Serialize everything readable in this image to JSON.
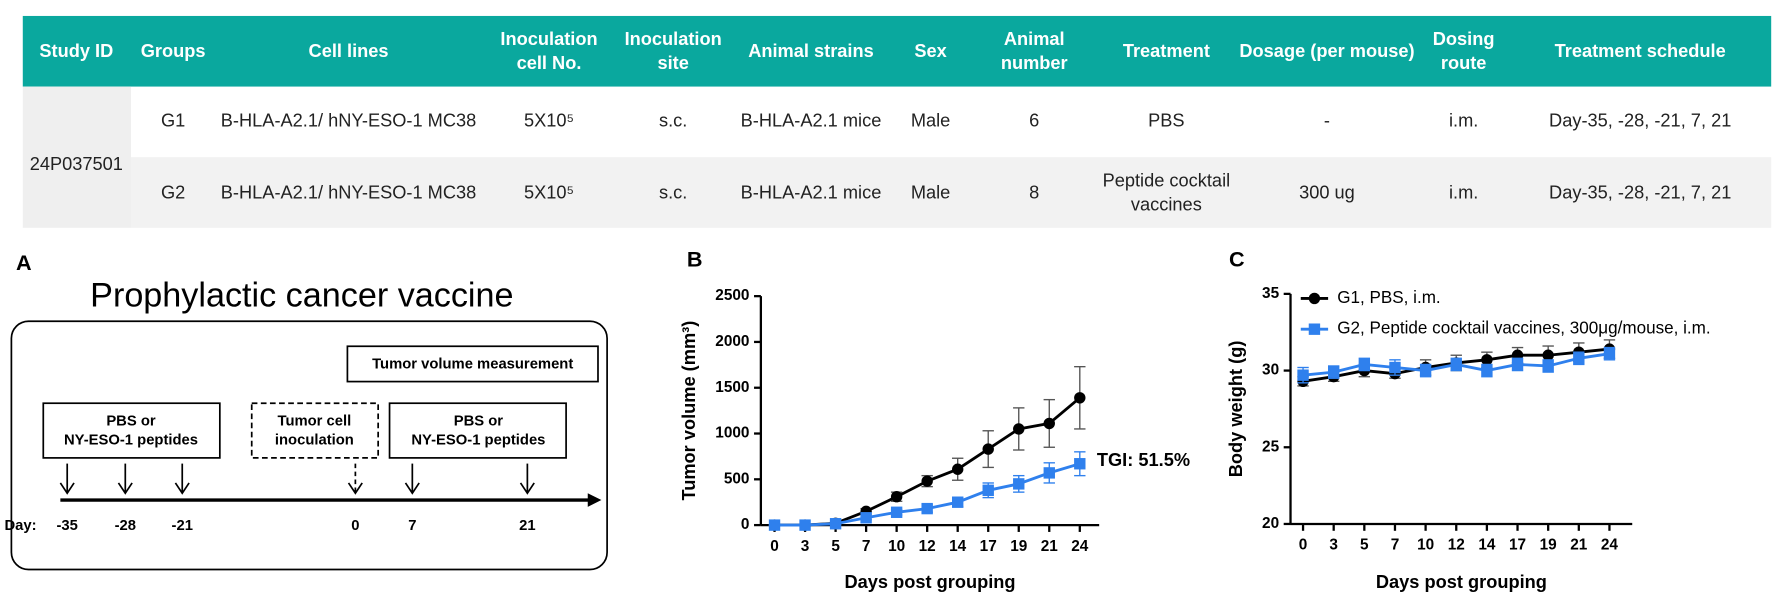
{
  "table": {
    "headers": [
      [
        "Study ID"
      ],
      [
        "Groups"
      ],
      [
        "Cell lines"
      ],
      [
        "Inoculation",
        "cell No."
      ],
      [
        "Inoculation",
        "site"
      ],
      [
        "Animal strains"
      ],
      [
        "Sex"
      ],
      [
        "Animal",
        "number"
      ],
      [
        "Treatment"
      ],
      [
        "Dosage (per mouse)"
      ],
      [
        "Dosing",
        "route"
      ],
      [
        "Treatment schedule"
      ]
    ],
    "study_id": "24P037501",
    "rows": [
      [
        [
          "G1"
        ],
        [
          "B-HLA-A2.1/ hNY-ESO-1 MC38"
        ],
        [
          "5X10⁵"
        ],
        [
          "s.c."
        ],
        [
          "B-HLA-A2.1 mice"
        ],
        [
          "Male"
        ],
        [
          6
        ],
        [
          "PBS"
        ],
        [
          "-"
        ],
        [
          "i.m."
        ],
        [
          "Day-35, -28, -21, 7, 21"
        ]
      ],
      [
        [
          "G2"
        ],
        [
          "B-HLA-A2.1/ hNY-ESO-1 MC38"
        ],
        [
          "5X10⁵"
        ],
        [
          "s.c."
        ],
        [
          "B-HLA-A2.1 mice"
        ],
        [
          "Male"
        ],
        [
          8
        ],
        [
          "Peptide cocktail",
          "vaccines"
        ],
        [
          "300 ug"
        ],
        [
          "i.m."
        ],
        [
          "Day-35, -28, -21, 7, 21"
        ]
      ]
    ]
  },
  "panel_a": {
    "label": "A",
    "title": "Prophylactic cancer vaccine",
    "measurement_box": "Tumor volume measurement",
    "treatment_box_1": [
      "PBS or",
      "NY-ESO-1 peptides"
    ],
    "inoculation_box": [
      "Tumor cell",
      "inoculation"
    ],
    "treatment_box_2": [
      "PBS or",
      "NY-ESO-1 peptides"
    ],
    "day_prefix": "Day:",
    "days": [
      -35,
      -28,
      -21,
      0,
      7,
      21
    ]
  },
  "chart_data": [
    {
      "type": "line",
      "panel_label": "B",
      "xlabel": "Days post grouping",
      "ylabel": "Tumor volume (mm³)",
      "categories": [
        0,
        3,
        5,
        7,
        10,
        12,
        14,
        17,
        19,
        21,
        24
      ],
      "ylim": [
        0,
        2500
      ],
      "yticks": [
        0,
        500,
        1000,
        1500,
        2000,
        2500
      ],
      "series": [
        {
          "color": "#000000",
          "marker": "circle",
          "values": [
            0,
            0,
            20,
            150,
            310,
            480,
            610,
            830,
            1050,
            1110,
            1390
          ],
          "errors": [
            0,
            0,
            10,
            30,
            50,
            60,
            120,
            200,
            230,
            260,
            340
          ]
        },
        {
          "color": "#2f80ed",
          "marker": "square",
          "values": [
            0,
            0,
            15,
            80,
            140,
            180,
            250,
            380,
            450,
            570,
            670
          ],
          "errors": [
            0,
            0,
            5,
            20,
            30,
            40,
            50,
            80,
            90,
            110,
            130
          ]
        }
      ],
      "annotation": "TGI: 51.5%"
    },
    {
      "type": "line",
      "panel_label": "C",
      "xlabel": "Days post grouping",
      "ylabel": "Body weight (g)",
      "categories": [
        0,
        3,
        5,
        7,
        10,
        12,
        14,
        17,
        19,
        21,
        24
      ],
      "ylim": [
        20,
        35
      ],
      "yticks": [
        20,
        25,
        30,
        35
      ],
      "legend": "upper left",
      "series": [
        {
          "name": "G1, PBS, i.m.",
          "color": "#000000",
          "marker": "circle",
          "values": [
            29.3,
            29.6,
            30.0,
            29.8,
            30.2,
            30.5,
            30.7,
            31.0,
            31.0,
            31.2,
            31.4
          ],
          "errors": [
            0.3,
            0.3,
            0.4,
            0.3,
            0.5,
            0.5,
            0.5,
            0.5,
            0.6,
            0.6,
            0.6
          ]
        },
        {
          "name": "G2, Peptide cocktail vaccines, 300μg/mouse, i.m.",
          "color": "#2f80ed",
          "marker": "square",
          "values": [
            29.7,
            29.9,
            30.4,
            30.2,
            30.0,
            30.4,
            30.0,
            30.4,
            30.3,
            30.8,
            31.1
          ],
          "errors": [
            0.5,
            0.4,
            0.4,
            0.5,
            0.4,
            0.4,
            0.4,
            0.4,
            0.4,
            0.4,
            0.4
          ]
        }
      ]
    }
  ]
}
